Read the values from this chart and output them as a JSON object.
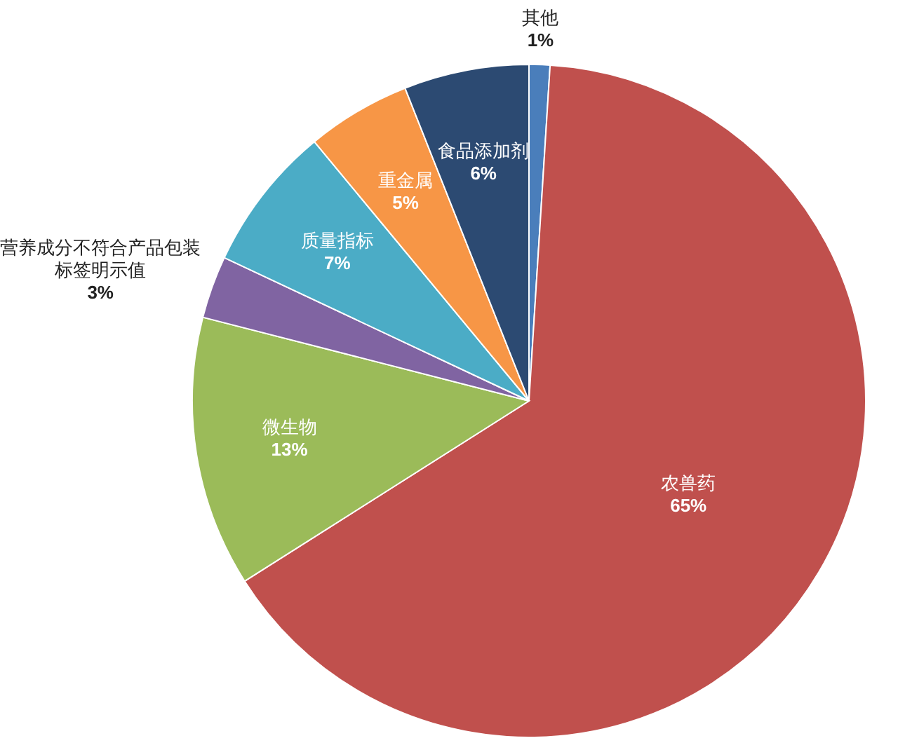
{
  "chart_data": {
    "type": "pie",
    "categories": [
      "其他",
      "农兽药",
      "微生物",
      "营养成分不符合产品包装标签明示值",
      "质量指标",
      "重金属",
      "食品添加剂"
    ],
    "values": [
      1,
      65,
      13,
      3,
      7,
      5,
      6
    ],
    "value_labels": [
      "1%",
      "65%",
      "13%",
      "3%",
      "7%",
      "5%",
      "6%"
    ],
    "colors": [
      "#4a7ebb",
      "#c0504d",
      "#9bbb59",
      "#8064a2",
      "#4bacc6",
      "#f79646",
      "#2c4a72"
    ]
  }
}
